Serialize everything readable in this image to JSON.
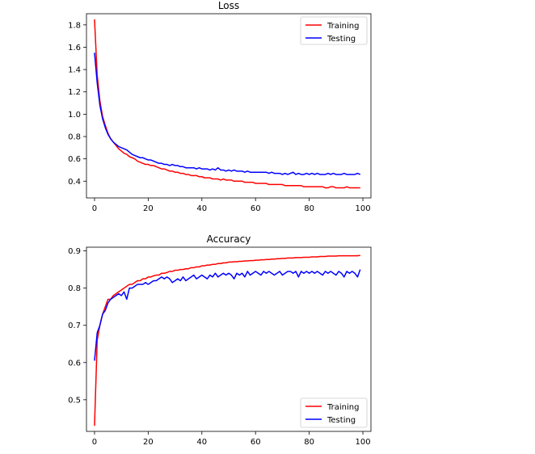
{
  "chart_data": [
    {
      "type": "line",
      "title": "Loss",
      "xlabel": "",
      "ylabel": "",
      "xlim": [
        -3,
        103
      ],
      "ylim": [
        0.25,
        1.9
      ],
      "xticks": [
        0,
        20,
        40,
        60,
        80,
        100
      ],
      "yticks": [
        0.4,
        0.6,
        0.8,
        1.0,
        1.2,
        1.4,
        1.6,
        1.8
      ],
      "grid": false,
      "legend_position": "top-right",
      "x": [
        0,
        1,
        2,
        3,
        4,
        5,
        6,
        7,
        8,
        9,
        10,
        11,
        12,
        13,
        14,
        15,
        16,
        17,
        18,
        19,
        20,
        21,
        22,
        23,
        24,
        25,
        26,
        27,
        28,
        29,
        30,
        31,
        32,
        33,
        34,
        35,
        36,
        37,
        38,
        39,
        40,
        41,
        42,
        43,
        44,
        45,
        46,
        47,
        48,
        49,
        50,
        51,
        52,
        53,
        54,
        55,
        56,
        57,
        58,
        59,
        60,
        61,
        62,
        63,
        64,
        65,
        66,
        67,
        68,
        69,
        70,
        71,
        72,
        73,
        74,
        75,
        76,
        77,
        78,
        79,
        80,
        81,
        82,
        83,
        84,
        85,
        86,
        87,
        88,
        89,
        90,
        91,
        92,
        93,
        94,
        95,
        96,
        97,
        98,
        99
      ],
      "series": [
        {
          "name": "Training",
          "color": "#ff0000",
          "values": [
            1.85,
            1.35,
            1.12,
            0.98,
            0.9,
            0.83,
            0.78,
            0.75,
            0.72,
            0.69,
            0.67,
            0.65,
            0.64,
            0.62,
            0.61,
            0.6,
            0.58,
            0.57,
            0.56,
            0.55,
            0.55,
            0.54,
            0.54,
            0.53,
            0.52,
            0.51,
            0.51,
            0.5,
            0.49,
            0.49,
            0.48,
            0.48,
            0.47,
            0.47,
            0.46,
            0.46,
            0.45,
            0.45,
            0.45,
            0.44,
            0.44,
            0.43,
            0.43,
            0.43,
            0.42,
            0.42,
            0.42,
            0.41,
            0.42,
            0.41,
            0.41,
            0.41,
            0.4,
            0.4,
            0.4,
            0.4,
            0.39,
            0.39,
            0.39,
            0.39,
            0.38,
            0.38,
            0.38,
            0.38,
            0.38,
            0.37,
            0.37,
            0.37,
            0.37,
            0.37,
            0.37,
            0.36,
            0.36,
            0.36,
            0.36,
            0.36,
            0.36,
            0.36,
            0.35,
            0.35,
            0.35,
            0.35,
            0.35,
            0.35,
            0.35,
            0.35,
            0.34,
            0.34,
            0.35,
            0.35,
            0.34,
            0.34,
            0.34,
            0.34,
            0.35,
            0.34,
            0.34,
            0.34,
            0.34,
            0.34
          ]
        },
        {
          "name": "Testing",
          "color": "#0000ff",
          "values": [
            1.55,
            1.28,
            1.08,
            0.96,
            0.88,
            0.82,
            0.78,
            0.75,
            0.73,
            0.71,
            0.7,
            0.69,
            0.68,
            0.66,
            0.64,
            0.63,
            0.62,
            0.61,
            0.61,
            0.6,
            0.59,
            0.59,
            0.58,
            0.57,
            0.56,
            0.56,
            0.55,
            0.55,
            0.54,
            0.55,
            0.54,
            0.54,
            0.53,
            0.53,
            0.52,
            0.52,
            0.52,
            0.52,
            0.51,
            0.52,
            0.51,
            0.51,
            0.51,
            0.5,
            0.51,
            0.5,
            0.52,
            0.5,
            0.5,
            0.49,
            0.5,
            0.49,
            0.5,
            0.49,
            0.49,
            0.49,
            0.48,
            0.49,
            0.48,
            0.48,
            0.48,
            0.48,
            0.48,
            0.48,
            0.48,
            0.47,
            0.48,
            0.47,
            0.47,
            0.47,
            0.46,
            0.47,
            0.46,
            0.47,
            0.48,
            0.46,
            0.47,
            0.46,
            0.46,
            0.47,
            0.46,
            0.47,
            0.46,
            0.47,
            0.46,
            0.46,
            0.46,
            0.47,
            0.46,
            0.47,
            0.46,
            0.46,
            0.46,
            0.47,
            0.46,
            0.46,
            0.46,
            0.46,
            0.47,
            0.46
          ]
        }
      ]
    },
    {
      "type": "line",
      "title": "Accuracy",
      "xlabel": "",
      "ylabel": "",
      "xlim": [
        -3,
        103
      ],
      "ylim": [
        0.415,
        0.91
      ],
      "xticks": [
        0,
        20,
        40,
        60,
        80,
        100
      ],
      "yticks": [
        0.5,
        0.6,
        0.7,
        0.8,
        0.9
      ],
      "grid": false,
      "legend_position": "bottom-right",
      "x": [
        0,
        1,
        2,
        3,
        4,
        5,
        6,
        7,
        8,
        9,
        10,
        11,
        12,
        13,
        14,
        15,
        16,
        17,
        18,
        19,
        20,
        21,
        22,
        23,
        24,
        25,
        26,
        27,
        28,
        29,
        30,
        31,
        32,
        33,
        34,
        35,
        36,
        37,
        38,
        39,
        40,
        41,
        42,
        43,
        44,
        45,
        46,
        47,
        48,
        49,
        50,
        51,
        52,
        53,
        54,
        55,
        56,
        57,
        58,
        59,
        60,
        61,
        62,
        63,
        64,
        65,
        66,
        67,
        68,
        69,
        70,
        71,
        72,
        73,
        74,
        75,
        76,
        77,
        78,
        79,
        80,
        81,
        82,
        83,
        84,
        85,
        86,
        87,
        88,
        89,
        90,
        91,
        92,
        93,
        94,
        95,
        96,
        97,
        98,
        99
      ],
      "series": [
        {
          "name": "Training",
          "color": "#ff0000",
          "values": [
            0.43,
            0.66,
            0.7,
            0.73,
            0.75,
            0.77,
            0.77,
            0.78,
            0.785,
            0.79,
            0.795,
            0.8,
            0.805,
            0.81,
            0.81,
            0.815,
            0.82,
            0.82,
            0.825,
            0.825,
            0.83,
            0.83,
            0.833,
            0.835,
            0.835,
            0.84,
            0.84,
            0.842,
            0.845,
            0.845,
            0.848,
            0.848,
            0.85,
            0.85,
            0.852,
            0.852,
            0.855,
            0.855,
            0.857,
            0.857,
            0.86,
            0.86,
            0.862,
            0.862,
            0.864,
            0.864,
            0.866,
            0.866,
            0.868,
            0.868,
            0.87,
            0.87,
            0.871,
            0.871,
            0.872,
            0.872,
            0.873,
            0.873,
            0.874,
            0.874,
            0.875,
            0.875,
            0.876,
            0.876,
            0.877,
            0.877,
            0.878,
            0.878,
            0.879,
            0.879,
            0.88,
            0.88,
            0.881,
            0.881,
            0.881,
            0.882,
            0.882,
            0.882,
            0.883,
            0.883,
            0.883,
            0.884,
            0.884,
            0.884,
            0.885,
            0.885,
            0.885,
            0.886,
            0.886,
            0.886,
            0.886,
            0.887,
            0.887,
            0.887,
            0.887,
            0.887,
            0.887,
            0.887,
            0.887,
            0.888
          ]
        },
        {
          "name": "Testing",
          "color": "#0000ff",
          "values": [
            0.605,
            0.68,
            0.7,
            0.73,
            0.74,
            0.76,
            0.77,
            0.775,
            0.78,
            0.785,
            0.78,
            0.79,
            0.77,
            0.8,
            0.8,
            0.805,
            0.81,
            0.81,
            0.81,
            0.815,
            0.81,
            0.815,
            0.82,
            0.82,
            0.825,
            0.83,
            0.825,
            0.83,
            0.825,
            0.815,
            0.82,
            0.825,
            0.82,
            0.83,
            0.82,
            0.825,
            0.83,
            0.835,
            0.825,
            0.83,
            0.835,
            0.83,
            0.825,
            0.835,
            0.83,
            0.84,
            0.83,
            0.835,
            0.84,
            0.835,
            0.84,
            0.835,
            0.825,
            0.84,
            0.835,
            0.84,
            0.83,
            0.845,
            0.835,
            0.84,
            0.845,
            0.84,
            0.835,
            0.845,
            0.84,
            0.845,
            0.84,
            0.835,
            0.84,
            0.845,
            0.835,
            0.84,
            0.845,
            0.845,
            0.84,
            0.845,
            0.83,
            0.845,
            0.84,
            0.845,
            0.84,
            0.845,
            0.84,
            0.845,
            0.84,
            0.835,
            0.845,
            0.84,
            0.845,
            0.84,
            0.835,
            0.845,
            0.84,
            0.83,
            0.845,
            0.84,
            0.845,
            0.84,
            0.83,
            0.85
          ]
        }
      ]
    }
  ]
}
